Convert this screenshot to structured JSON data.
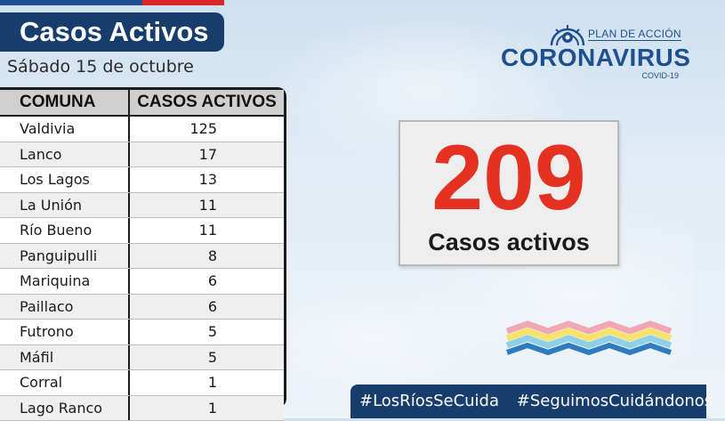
{
  "header": {
    "title": "Casos Activos",
    "date": "Sábado 15 de octubre"
  },
  "logo": {
    "plan": "PLAN DE ACCIÓN",
    "name": "CORONAVIRUS",
    "sub": "COVID-19"
  },
  "table": {
    "headers": {
      "comuna": "COMUNA",
      "casos": "CASOS ACTIVOS"
    },
    "rows": [
      {
        "comuna": "Valdivia",
        "casos": "125"
      },
      {
        "comuna": "Lanco",
        "casos": "17"
      },
      {
        "comuna": "Los Lagos",
        "casos": "13"
      },
      {
        "comuna": "La Unión",
        "casos": "11"
      },
      {
        "comuna": "Río Bueno",
        "casos": "11"
      },
      {
        "comuna": "Panguipulli",
        "casos": "8"
      },
      {
        "comuna": "Mariquina",
        "casos": "6"
      },
      {
        "comuna": "Paillaco",
        "casos": "6"
      },
      {
        "comuna": "Futrono",
        "casos": "5"
      },
      {
        "comuna": "Máfil",
        "casos": "5"
      },
      {
        "comuna": "Corral",
        "casos": "1"
      },
      {
        "comuna": "Lago Ranco",
        "casos": "1"
      }
    ]
  },
  "total": {
    "value": "209",
    "label": "Casos activos"
  },
  "hashtags": [
    "#LosRíosSeCuida",
    "#SeguimosCuidándonos"
  ],
  "colors": {
    "navy": "#173d6d",
    "accent_red": "#e53120",
    "logo_blue": "#1e4f8f",
    "flag_blue": "#1f4f93",
    "flag_red": "#d8262b"
  },
  "icons": {
    "logo": "coronavirus-emblem-icon",
    "decoration": "rainbow-waves-icon"
  }
}
